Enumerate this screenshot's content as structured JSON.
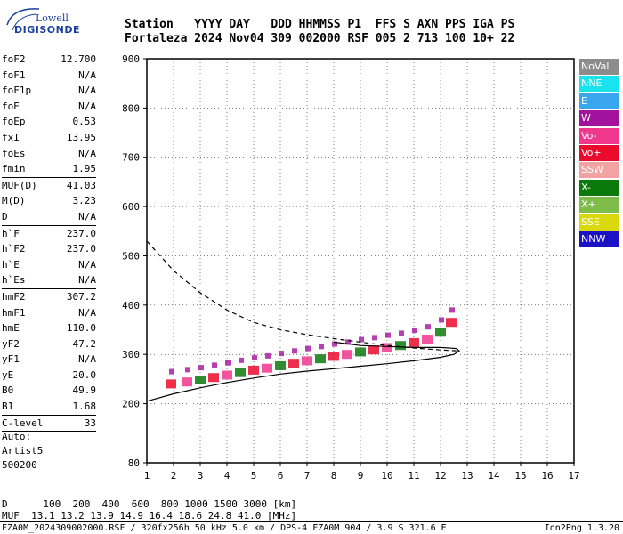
{
  "logo": {
    "line1": "Lowell",
    "line2": "DIGISONDE"
  },
  "header": {
    "line1": "Station   YYYY DAY   DDD HHMMSS P1  FFS S AXN PPS IGA PS",
    "line2": "Fortaleza 2024 Nov04 309 002000 RSF 005 2 713 100 10+ 22"
  },
  "params": {
    "group1": [
      {
        "label": "foF2",
        "value": "12.700"
      },
      {
        "label": "foF1",
        "value": "N/A"
      },
      {
        "label": "foF1p",
        "value": "N/A"
      },
      {
        "label": "foE",
        "value": "N/A"
      },
      {
        "label": "foEp",
        "value": "0.53"
      },
      {
        "label": "fxI",
        "value": "13.95"
      },
      {
        "label": "foEs",
        "value": "N/A"
      },
      {
        "label": "fmin",
        "value": "1.95"
      }
    ],
    "group2": [
      {
        "label": "MUF(D)",
        "value": "41.03"
      },
      {
        "label": "M(D)",
        "value": "3.23"
      },
      {
        "label": "D",
        "value": "N/A"
      }
    ],
    "group3": [
      {
        "label": "h`F",
        "value": "237.0"
      },
      {
        "label": "h`F2",
        "value": "237.0"
      },
      {
        "label": "h`E",
        "value": "N/A"
      },
      {
        "label": "h`Es",
        "value": "N/A"
      }
    ],
    "group4": [
      {
        "label": "hmF2",
        "value": "307.2"
      },
      {
        "label": "hmF1",
        "value": "N/A"
      },
      {
        "label": "hmE",
        "value": "110.0"
      },
      {
        "label": "yF2",
        "value": "47.2"
      },
      {
        "label": "yF1",
        "value": "N/A"
      },
      {
        "label": "yE",
        "value": "20.0"
      },
      {
        "label": "B0",
        "value": "49.9"
      },
      {
        "label": "B1",
        "value": "1.68"
      }
    ],
    "group5": [
      {
        "label": "C-level",
        "value": "33"
      }
    ]
  },
  "notes": {
    "auto": "Auto:",
    "artist": "Artist5",
    "version": "500200"
  },
  "legend": [
    {
      "label": "NoVal",
      "color": "#8c8c8c"
    },
    {
      "label": "NNE",
      "color": "#19e3ec"
    },
    {
      "label": "E",
      "color": "#3aa6f0"
    },
    {
      "label": "W",
      "color": "#a3129c"
    },
    {
      "label": "Vo-",
      "color": "#f0378c"
    },
    {
      "label": "Vo+",
      "color": "#ea0b2c"
    },
    {
      "label": "SSW",
      "color": "#f2a2a2"
    },
    {
      "label": "X-",
      "color": "#0a7a0a"
    },
    {
      "label": "X+",
      "color": "#7fbd4a"
    },
    {
      "label": "SSE",
      "color": "#d9d90b"
    },
    {
      "label": "NNW",
      "color": "#1a12c4"
    }
  ],
  "bottom": {
    "d_line": "D      100  200  400  600  800 1000 1500 3000 [km]",
    "muf_line": "MUF  13.1 13.2 13.9 14.9 16.4 18.6 24.8 41.0 [MHz]",
    "footer": "FZA0M_2024309002000.RSF / 320fx256h 50 kHz 5.0 km / DPS-4 FZA0M 904 / 3.9 S 321.6 E",
    "footer_right": "Ion2Png 1.3.20"
  },
  "chart_data": {
    "type": "scatter",
    "xlim": [
      1,
      17
    ],
    "ylim": [
      80,
      900
    ],
    "x_ticks": [
      1,
      2,
      3,
      4,
      5,
      6,
      7,
      8,
      9,
      10,
      11,
      12,
      13,
      14,
      15,
      16,
      17
    ],
    "y_ticks": [
      80,
      200,
      300,
      400,
      500,
      600,
      700,
      800,
      900
    ],
    "grid": true,
    "legend_placement": "right",
    "trace_lower_x": [
      1.9,
      2.5,
      3.0,
      3.5,
      4.0,
      4.5,
      5.0,
      5.5,
      6.0,
      6.5,
      7.0,
      7.5,
      8.0,
      8.5,
      9.0,
      9.5,
      10.0,
      10.5,
      11.0,
      11.5,
      12.0,
      12.4
    ],
    "trace_lower_y": [
      240,
      244,
      248,
      253,
      258,
      263,
      268,
      272,
      277,
      282,
      287,
      291,
      296,
      300,
      305,
      309,
      314,
      318,
      324,
      331,
      345,
      365
    ],
    "profile_solid_x": [
      1.0,
      2.0,
      3.0,
      4.0,
      5.0,
      6.0,
      7.0,
      8.0,
      9.0,
      10.0,
      11.0,
      12.0,
      12.5,
      12.7,
      12.6,
      12.0,
      11.0,
      10.0,
      9.0,
      8.0
    ],
    "profile_solid_y": [
      205,
      220,
      232,
      243,
      252,
      260,
      266,
      271,
      276,
      281,
      287,
      294,
      300,
      307,
      312,
      314,
      314,
      316,
      318,
      325
    ],
    "profile_dashed_x": [
      1.0,
      2.0,
      3.0,
      4.0,
      5.0,
      6.0,
      7.0,
      8.0,
      9.0,
      10.0,
      11.0,
      12.0,
      12.7
    ],
    "profile_dashed_y": [
      530,
      470,
      425,
      390,
      365,
      350,
      340,
      332,
      325,
      318,
      313,
      309,
      307
    ]
  }
}
